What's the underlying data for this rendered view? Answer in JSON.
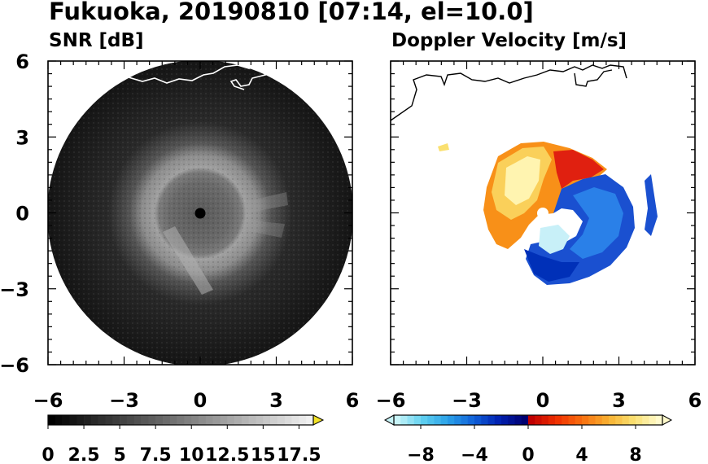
{
  "figure": {
    "title": "Fukuoka, 20190810 [07:14, el=10.0]"
  },
  "chart_data": [
    {
      "type": "heatmap",
      "title": "SNR [dB]",
      "xlim": [
        -6,
        6
      ],
      "ylim": [
        -6,
        6
      ],
      "xticks": [
        "−6",
        "−3",
        "0",
        "3",
        "6"
      ],
      "yticks": [
        "6",
        "3",
        "0",
        "−3",
        "−6"
      ],
      "grid": false,
      "description_values": {
        "radar_range_radius": 6,
        "inner_ring_radius": 2.4,
        "core_radius": 1.4
      },
      "colorbar": {
        "min": 0,
        "max": 18.5,
        "step": 0.5,
        "extend": "max",
        "tick_labels": [
          "0",
          "2.5",
          "5",
          "7.5",
          "10",
          "12.5",
          "15",
          "17.5"
        ],
        "tick_values": [
          0,
          2.5,
          5,
          7.5,
          10,
          12.5,
          15,
          17.5
        ],
        "colors": [
          "#000000",
          "#ffffff"
        ],
        "extend_color": "#f2e227"
      }
    },
    {
      "type": "heatmap",
      "title": "Doppler Velocity [m/s]",
      "xlim": [
        -6,
        6
      ],
      "ylim": [
        -6,
        6
      ],
      "xticks": [
        "−6",
        "−3",
        "0",
        "3",
        "6"
      ],
      "grid": false,
      "colorbar": {
        "min": -10,
        "max": 10,
        "extend": "both",
        "tick_labels": [
          "−8",
          "−4",
          "0",
          "4",
          "8"
        ],
        "tick_values": [
          -8,
          -4,
          0,
          4,
          8
        ],
        "negative_colors": [
          "#c8f4f8",
          "#5fd0f0",
          "#2aa0e8",
          "#1060d8",
          "#0020b0",
          "#000070"
        ],
        "positive_colors": [
          "#c00000",
          "#f03000",
          "#f87010",
          "#f8b030",
          "#fae070",
          "#fffacc"
        ]
      },
      "features": {
        "approaching_side": "left",
        "receding_side": "right",
        "radar_marker_color": "#ffffff"
      }
    }
  ],
  "colors": {
    "snr_background": "#111111",
    "snr_ring": "#9a9a9a",
    "snr_core": "#5a5a5a",
    "coastline": "#000000",
    "coastline_on_snr": "#ffffff"
  }
}
